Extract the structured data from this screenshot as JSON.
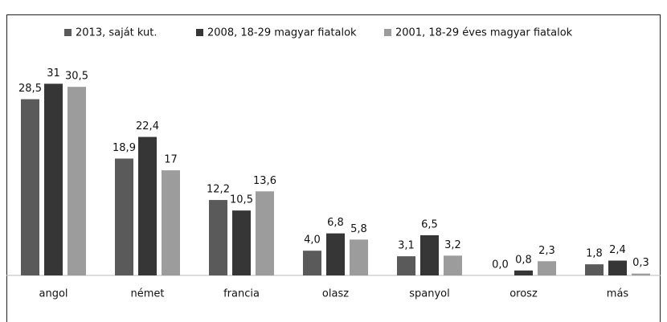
{
  "chart_data": {
    "type": "bar",
    "categories": [
      "angol",
      "német",
      "francia",
      "olasz",
      "spanyol",
      "orosz",
      "más"
    ],
    "series": [
      {
        "name": "2013, saját kut.",
        "color": "#5a5a5a",
        "values": [
          28.5,
          18.9,
          12.2,
          4.0,
          3.1,
          0.0,
          1.8
        ],
        "value_labels": [
          "28,5",
          "18,9",
          "12,2",
          "4,0",
          "3,1",
          "0,0",
          "1,8"
        ]
      },
      {
        "name": "2008, 18-29 magyar fiatalok",
        "color": "#363636",
        "values": [
          31,
          22.4,
          10.5,
          6.8,
          6.5,
          0.8,
          2.4
        ],
        "value_labels": [
          "31",
          "22,4",
          "10,5",
          "6,8",
          "6,5",
          "0,8",
          "2,4"
        ]
      },
      {
        "name": "2001, 18-29 éves magyar fiatalok",
        "color": "#9c9c9c",
        "values": [
          30.5,
          17,
          13.6,
          5.8,
          3.2,
          2.3,
          0.3
        ],
        "value_labels": [
          "30,5",
          "17",
          "13,6",
          "5,8",
          "3,2",
          "2,3",
          "0,3"
        ]
      }
    ],
    "ylim": [
      0,
      35
    ],
    "legend": "top"
  }
}
